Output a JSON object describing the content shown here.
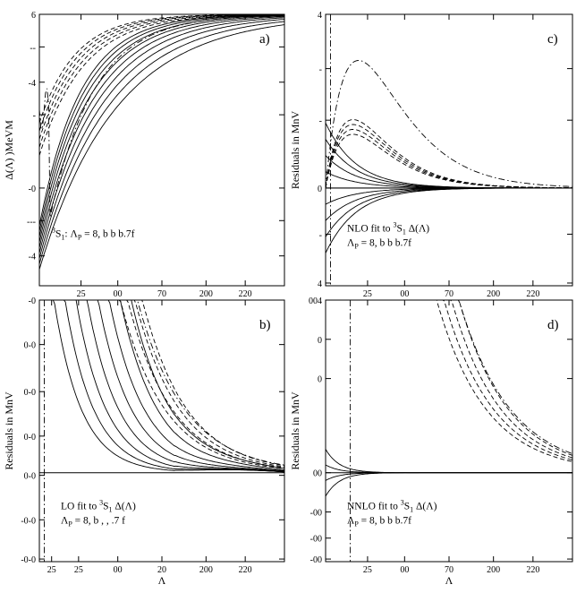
{
  "chart_data": [
    {
      "id": "a",
      "type": "line",
      "panel_letter": "a)",
      "ylabel": "Δ(Λ) )MeVM",
      "xlabel": "",
      "ylim": [
        -4.5,
        6
      ],
      "xticks": [
        "25",
        "00",
        "70",
        "200",
        "220"
      ],
      "yticks": [
        "6",
        "--",
        "-4",
        "-",
        "-0",
        "---",
        "-4"
      ],
      "annotation": {
        "sup": "3",
        "prefix": "",
        "main": "S",
        "sub": "1",
        "rest": ": Λ",
        "sub2": "P",
        "tail": " = 8, b b b.7f",
        "line2": ""
      },
      "series": [
        {
          "name": "solid family",
          "style": "solid"
        },
        {
          "name": "dashed family",
          "style": "dashed"
        },
        {
          "name": "dash-dot",
          "style": "dashdot"
        }
      ]
    },
    {
      "id": "b",
      "type": "line",
      "panel_letter": "b)",
      "ylabel": "Residuals in MnV",
      "xlabel": "Λ",
      "xticks": [
        "25",
        "25",
        "00",
        "20",
        "200",
        "220"
      ],
      "yticks": [
        "-0",
        "0-0",
        "0-0",
        "0-0",
        "0-0",
        "-0-0",
        "-0-0"
      ],
      "annotation": {
        "prefix": "LO fit to ",
        "sup": "3",
        "main": "S",
        "sub": "1",
        "rest": " Δ(Λ)",
        "line2": "Λ",
        "sub2": "P",
        "tail": " = 8, b , , .7 f"
      },
      "series": [
        {
          "name": "solid family",
          "style": "solid"
        },
        {
          "name": "dashed family",
          "style": "dashed"
        },
        {
          "name": "dash-dot",
          "style": "dashdot"
        }
      ]
    },
    {
      "id": "c",
      "type": "line",
      "panel_letter": "c)",
      "ylabel": "Residuals in MnV",
      "xlabel": "",
      "xticks": [
        "25",
        "00",
        "70",
        "200",
        "220"
      ],
      "yticks": [
        "4",
        "-",
        "-",
        "0",
        "-",
        "4"
      ],
      "annotation": {
        "prefix": "NLO fit to ",
        "sup": "3",
        "main": "S",
        "sub": "1",
        "rest": " Δ(Λ)",
        "line2": "Λ",
        "sub2": "P",
        "tail": " = 8, b b b.7f"
      },
      "series": [
        {
          "name": "solid family",
          "style": "solid"
        },
        {
          "name": "dashed family",
          "style": "dashed"
        },
        {
          "name": "dash-dot",
          "style": "dashdot"
        }
      ]
    },
    {
      "id": "d",
      "type": "line",
      "panel_letter": "d)",
      "ylabel": "Residuals in MnV",
      "xlabel": "Λ",
      "xticks": [
        "25",
        "00",
        "70",
        "200",
        "220"
      ],
      "yticks": [
        "004",
        "0",
        "0",
        "00",
        "-00",
        "-00",
        "-00"
      ],
      "annotation": {
        "prefix": "NNLO fit to ",
        "sup": "3",
        "main": "S",
        "sub": "1",
        "rest": " Δ(Λ)",
        "line2": "Λ",
        "sub2": "P",
        "tail": " = 8, b b b.7f"
      },
      "series": [
        {
          "name": "solid family",
          "style": "solid"
        },
        {
          "name": "dashed family",
          "style": "dashed"
        },
        {
          "name": "dash-dot",
          "style": "dashdot"
        }
      ]
    }
  ]
}
